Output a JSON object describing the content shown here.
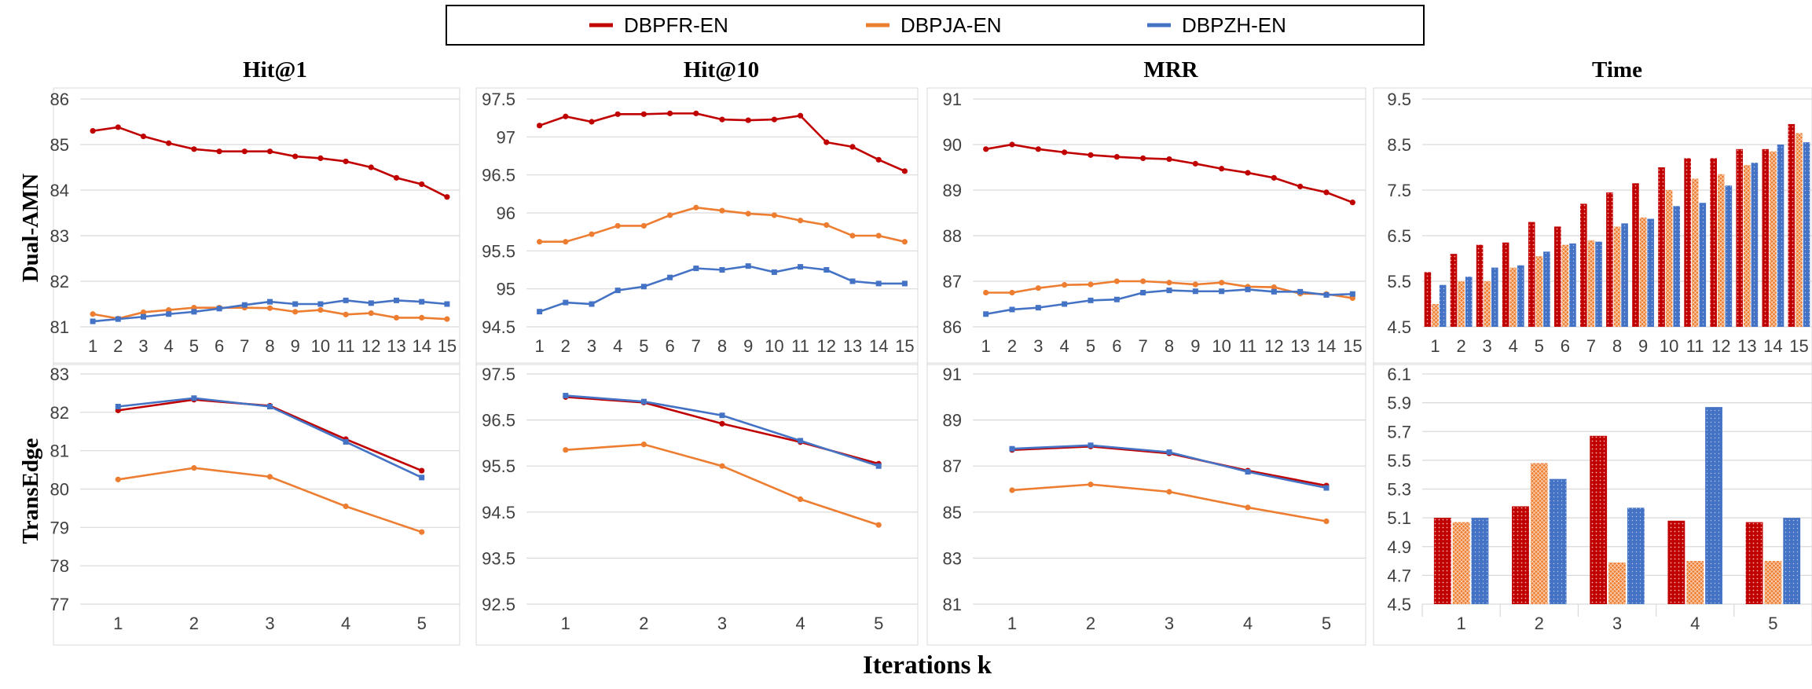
{
  "legend": {
    "items": [
      {
        "name": "DBPFR-EN",
        "color": "#c00000"
      },
      {
        "name": "DBPJA-EN",
        "color": "#ed7d31"
      },
      {
        "name": "DBPZH-EN",
        "color": "#4472c4"
      }
    ]
  },
  "column_titles": [
    "Hit@1",
    "Hit@10",
    "MRR",
    "Time"
  ],
  "row_labels": [
    "Dual-AMN",
    "TransEdge"
  ],
  "x_axis_title": "Iterations k",
  "chart_data": [
    {
      "type": "line",
      "title": "Hit@1",
      "row": "Dual-AMN",
      "x": [
        "1",
        "2",
        "3",
        "4",
        "5",
        "6",
        "7",
        "8",
        "9",
        "10",
        "11",
        "12",
        "13",
        "14",
        "15"
      ],
      "ylim": [
        81,
        86
      ],
      "ystep": 1,
      "yticks": [
        "81",
        "82",
        "83",
        "84",
        "85",
        "86"
      ],
      "series": [
        {
          "name": "DBPFR-EN",
          "values": [
            85.3,
            85.38,
            85.18,
            85.03,
            84.9,
            84.85,
            84.85,
            84.85,
            84.74,
            84.7,
            84.63,
            84.5,
            84.27,
            84.13,
            83.85
          ]
        },
        {
          "name": "DBPJA-EN",
          "values": [
            81.28,
            81.18,
            81.32,
            81.37,
            81.42,
            81.42,
            81.42,
            81.41,
            81.33,
            81.37,
            81.27,
            81.3,
            81.2,
            81.2,
            81.17
          ]
        },
        {
          "name": "DBPZH-EN",
          "values": [
            81.12,
            81.17,
            81.22,
            81.28,
            81.33,
            81.4,
            81.48,
            81.55,
            81.5,
            81.5,
            81.58,
            81.52,
            81.58,
            81.55,
            81.5
          ]
        }
      ]
    },
    {
      "type": "line",
      "title": "Hit@10",
      "row": "Dual-AMN",
      "x": [
        "1",
        "2",
        "3",
        "4",
        "5",
        "6",
        "7",
        "8",
        "9",
        "10",
        "11",
        "12",
        "13",
        "14",
        "15"
      ],
      "ylim": [
        94.5,
        97.5
      ],
      "ystep": 0.5,
      "yticks": [
        "94.5",
        "95",
        "95.5",
        "96",
        "96.5",
        "97",
        "97.5"
      ],
      "series": [
        {
          "name": "DBPFR-EN",
          "values": [
            97.15,
            97.27,
            97.2,
            97.3,
            97.3,
            97.31,
            97.31,
            97.23,
            97.22,
            97.23,
            97.28,
            96.93,
            96.87,
            96.7,
            96.55
          ]
        },
        {
          "name": "DBPJA-EN",
          "values": [
            95.62,
            95.62,
            95.72,
            95.83,
            95.83,
            95.97,
            96.07,
            96.03,
            95.99,
            95.97,
            95.9,
            95.84,
            95.7,
            95.7,
            95.62
          ]
        },
        {
          "name": "DBPZH-EN",
          "values": [
            94.7,
            94.82,
            94.8,
            94.98,
            95.03,
            95.15,
            95.27,
            95.25,
            95.3,
            95.22,
            95.29,
            95.25,
            95.1,
            95.07,
            95.07
          ]
        }
      ]
    },
    {
      "type": "line",
      "title": "MRR",
      "row": "Dual-AMN",
      "x": [
        "1",
        "2",
        "3",
        "4",
        "5",
        "6",
        "7",
        "8",
        "9",
        "10",
        "11",
        "12",
        "13",
        "14",
        "15"
      ],
      "ylim": [
        86,
        91
      ],
      "ystep": 1,
      "yticks": [
        "86",
        "87",
        "88",
        "89",
        "90",
        "91"
      ],
      "series": [
        {
          "name": "DBPFR-EN",
          "values": [
            89.9,
            90.0,
            89.9,
            89.83,
            89.77,
            89.73,
            89.7,
            89.68,
            89.58,
            89.47,
            89.38,
            89.27,
            89.08,
            88.95,
            88.73
          ]
        },
        {
          "name": "DBPJA-EN",
          "values": [
            86.75,
            86.75,
            86.85,
            86.92,
            86.93,
            87.0,
            87.0,
            86.97,
            86.93,
            86.97,
            86.88,
            86.87,
            86.73,
            86.72,
            86.63
          ]
        },
        {
          "name": "DBPZH-EN",
          "values": [
            86.28,
            86.38,
            86.42,
            86.5,
            86.58,
            86.6,
            86.75,
            86.8,
            86.78,
            86.78,
            86.82,
            86.77,
            86.77,
            86.7,
            86.72
          ]
        }
      ]
    },
    {
      "type": "bar",
      "title": "Time",
      "row": "Dual-AMN",
      "categories": [
        "1",
        "2",
        "3",
        "4",
        "5",
        "6",
        "7",
        "8",
        "9",
        "10",
        "11",
        "12",
        "13",
        "14",
        "15"
      ],
      "ylim": [
        4.5,
        9.5
      ],
      "ystep": 1,
      "yticks": [
        "4.5",
        "5.5",
        "6.5",
        "7.5",
        "8.5",
        "9.5"
      ],
      "series": [
        {
          "name": "DBPFR-EN",
          "values": [
            5.7,
            6.1,
            6.3,
            6.35,
            6.8,
            6.7,
            7.2,
            7.45,
            7.65,
            8.0,
            8.2,
            8.2,
            8.4,
            8.4,
            8.95
          ]
        },
        {
          "name": "DBPJA-EN",
          "values": [
            5.0,
            5.5,
            5.5,
            5.8,
            6.05,
            6.3,
            6.4,
            6.7,
            6.9,
            7.5,
            7.75,
            7.85,
            8.05,
            8.35,
            8.75
          ]
        },
        {
          "name": "DBPZH-EN",
          "values": [
            5.42,
            5.6,
            5.8,
            5.85,
            6.15,
            6.33,
            6.37,
            6.77,
            6.87,
            7.15,
            7.22,
            7.6,
            8.1,
            8.5,
            8.55
          ]
        }
      ]
    },
    {
      "type": "line",
      "title": "Hit@1",
      "row": "TransEdge",
      "x": [
        "1",
        "2",
        "3",
        "4",
        "5"
      ],
      "ylim": [
        77,
        83
      ],
      "ystep": 1,
      "yticks": [
        "77",
        "78",
        "79",
        "80",
        "81",
        "82",
        "83"
      ],
      "series": [
        {
          "name": "DBPFR-EN",
          "values": [
            82.05,
            82.33,
            82.17,
            81.3,
            80.48
          ]
        },
        {
          "name": "DBPJA-EN",
          "values": [
            80.25,
            80.55,
            80.32,
            79.55,
            78.88
          ]
        },
        {
          "name": "DBPZH-EN",
          "values": [
            82.15,
            82.37,
            82.15,
            81.23,
            80.3
          ]
        }
      ]
    },
    {
      "type": "line",
      "title": "Hit@10",
      "row": "TransEdge",
      "x": [
        "1",
        "2",
        "3",
        "4",
        "5"
      ],
      "ylim": [
        92.5,
        97.5
      ],
      "ystep": 1,
      "yticks": [
        "92.5",
        "93.5",
        "94.5",
        "95.5",
        "96.5",
        "97.5"
      ],
      "series": [
        {
          "name": "DBPFR-EN",
          "values": [
            97.0,
            96.88,
            96.42,
            96.02,
            95.55
          ]
        },
        {
          "name": "DBPJA-EN",
          "values": [
            95.85,
            95.97,
            95.5,
            94.78,
            94.22
          ]
        },
        {
          "name": "DBPZH-EN",
          "values": [
            97.03,
            96.9,
            96.6,
            96.05,
            95.5
          ]
        }
      ]
    },
    {
      "type": "line",
      "title": "MRR",
      "row": "TransEdge",
      "x": [
        "1",
        "2",
        "3",
        "4",
        "5"
      ],
      "ylim": [
        81,
        91
      ],
      "ystep": 2,
      "yticks": [
        "81",
        "83",
        "85",
        "87",
        "89",
        "91"
      ],
      "series": [
        {
          "name": "DBPFR-EN",
          "values": [
            87.7,
            87.85,
            87.55,
            86.8,
            86.15
          ]
        },
        {
          "name": "DBPJA-EN",
          "values": [
            85.95,
            86.2,
            85.88,
            85.2,
            84.6
          ]
        },
        {
          "name": "DBPZH-EN",
          "values": [
            87.75,
            87.9,
            87.6,
            86.75,
            86.05
          ]
        }
      ]
    },
    {
      "type": "bar",
      "title": "Time",
      "row": "TransEdge",
      "categories": [
        "1",
        "2",
        "3",
        "4",
        "5"
      ],
      "ylim": [
        4.5,
        6.1
      ],
      "ystep": 0.2,
      "yticks": [
        "4.5",
        "4.7",
        "4.9",
        "5.1",
        "5.3",
        "5.5",
        "5.7",
        "5.9",
        "6.1"
      ],
      "series": [
        {
          "name": "DBPFR-EN",
          "values": [
            5.1,
            5.18,
            5.67,
            5.08,
            5.07
          ]
        },
        {
          "name": "DBPJA-EN",
          "values": [
            5.07,
            5.48,
            4.79,
            4.8,
            4.8
          ]
        },
        {
          "name": "DBPZH-EN",
          "values": [
            5.1,
            5.37,
            5.17,
            5.87,
            5.1
          ]
        }
      ]
    }
  ]
}
